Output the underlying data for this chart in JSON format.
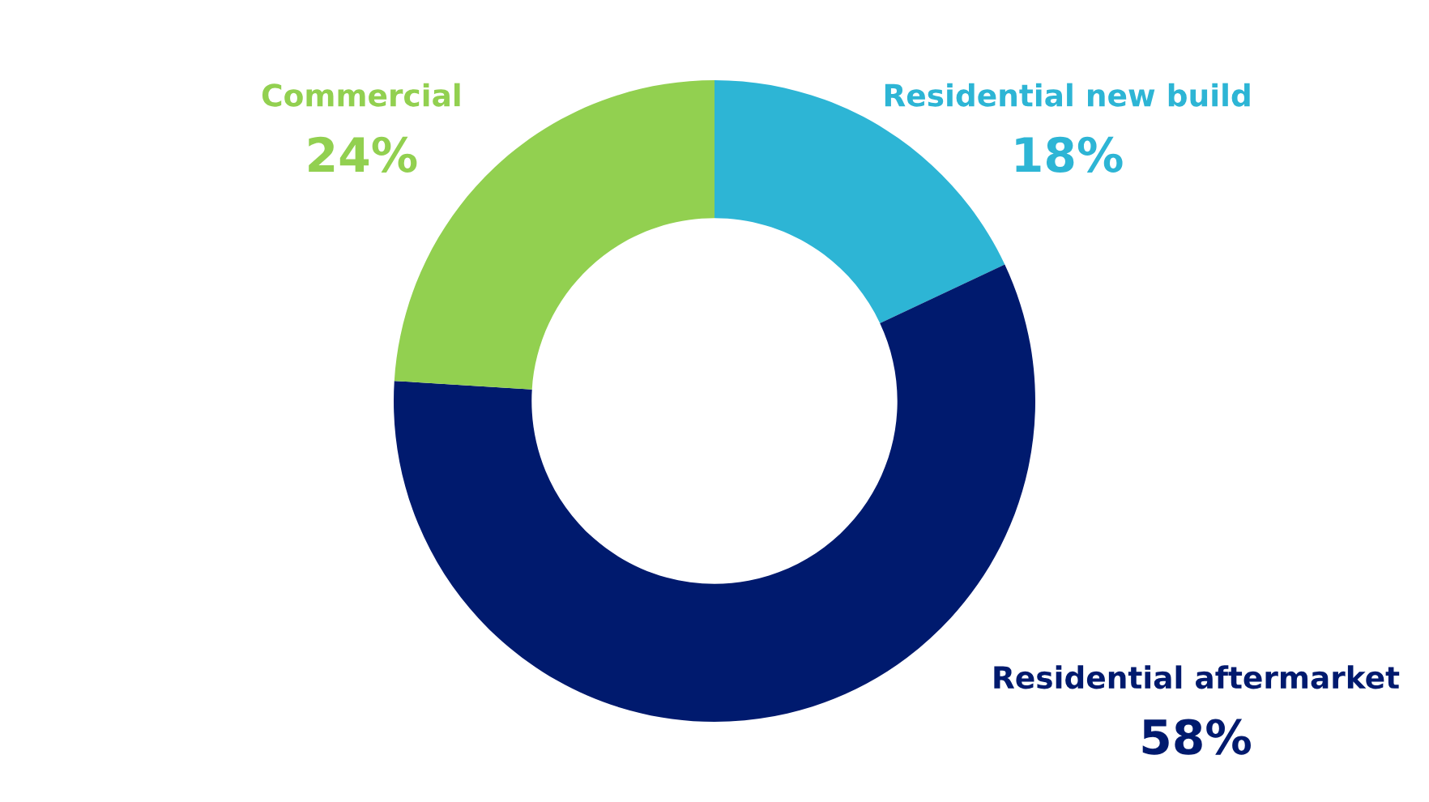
{
  "chart_data": {
    "type": "donut",
    "categories": [
      "Residential new build",
      "Residential aftermarket",
      "Commercial"
    ],
    "values": [
      18,
      58,
      24
    ],
    "value_labels": [
      "18%",
      "58%",
      "24%"
    ],
    "colors": [
      "#2db5d5",
      "#001a6e",
      "#92d050"
    ],
    "legend": false
  }
}
